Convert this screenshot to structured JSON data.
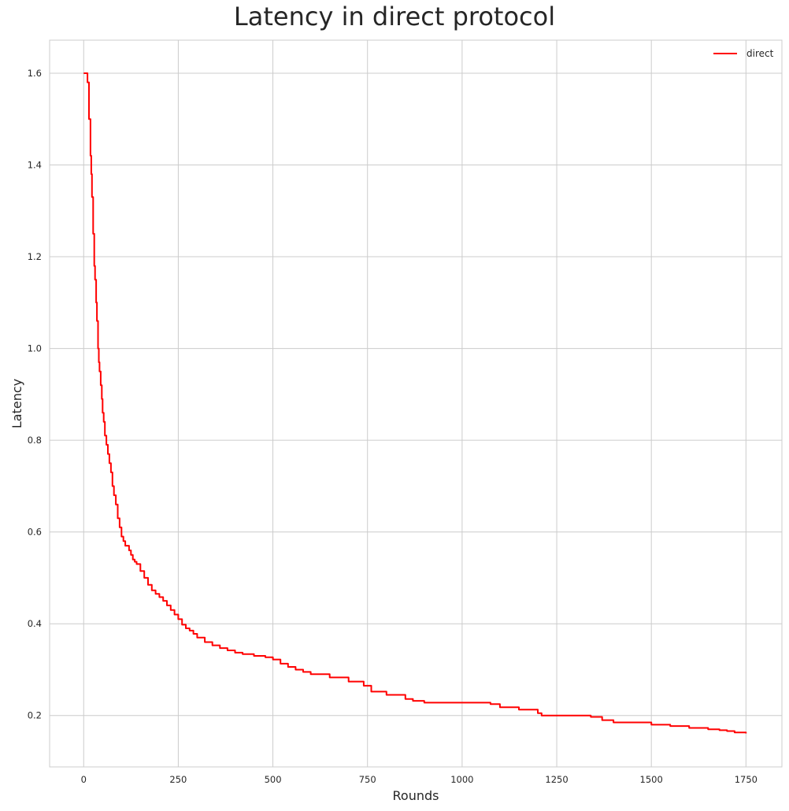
{
  "chart_data": {
    "type": "line",
    "title": "Latency in direct protocol",
    "xlabel": "Rounds",
    "ylabel": "Latency",
    "xlim": [
      -90,
      1845
    ],
    "ylim": [
      0.088,
      1.672
    ],
    "xticks": [
      0,
      250,
      500,
      750,
      1000,
      1250,
      1500,
      1750
    ],
    "xtick_labels": [
      "0",
      "250",
      "500",
      "750",
      "1000",
      "1250",
      "1500",
      "1750"
    ],
    "yticks": [
      0.2,
      0.4,
      0.6,
      0.8,
      1.0,
      1.2,
      1.4,
      1.6
    ],
    "ytick_labels": [
      "0.2",
      "0.4",
      "0.6",
      "0.8",
      "1.0",
      "1.2",
      "1.4",
      "1.6"
    ],
    "grid": true,
    "legend_position": "top-right",
    "series": [
      {
        "name": "direct",
        "color": "#ff0000",
        "x": [
          0,
          8,
          10,
          14,
          18,
          20,
          22,
          25,
          28,
          30,
          33,
          35,
          38,
          40,
          42,
          45,
          48,
          50,
          53,
          56,
          60,
          64,
          68,
          72,
          76,
          80,
          85,
          90,
          95,
          100,
          105,
          110,
          115,
          120,
          125,
          130,
          135,
          140,
          150,
          160,
          170,
          180,
          190,
          200,
          210,
          220,
          230,
          240,
          250,
          260,
          270,
          280,
          290,
          300,
          320,
          340,
          360,
          380,
          400,
          420,
          450,
          480,
          500,
          520,
          540,
          560,
          580,
          600,
          650,
          700,
          740,
          760,
          800,
          850,
          870,
          900,
          1000,
          1050,
          1075,
          1100,
          1150,
          1200,
          1210,
          1250,
          1300,
          1340,
          1370,
          1400,
          1450,
          1500,
          1550,
          1600,
          1650,
          1680,
          1700,
          1720,
          1750
        ],
        "y": [
          1.6,
          1.6,
          1.58,
          1.5,
          1.42,
          1.38,
          1.33,
          1.25,
          1.18,
          1.15,
          1.1,
          1.06,
          1.0,
          0.97,
          0.95,
          0.92,
          0.89,
          0.86,
          0.84,
          0.81,
          0.79,
          0.77,
          0.75,
          0.73,
          0.7,
          0.68,
          0.66,
          0.63,
          0.61,
          0.59,
          0.58,
          0.57,
          0.57,
          0.56,
          0.55,
          0.54,
          0.535,
          0.53,
          0.515,
          0.5,
          0.485,
          0.473,
          0.465,
          0.458,
          0.45,
          0.44,
          0.43,
          0.42,
          0.41,
          0.398,
          0.39,
          0.385,
          0.378,
          0.37,
          0.36,
          0.353,
          0.347,
          0.342,
          0.337,
          0.334,
          0.33,
          0.327,
          0.322,
          0.313,
          0.306,
          0.3,
          0.295,
          0.29,
          0.283,
          0.274,
          0.265,
          0.252,
          0.245,
          0.236,
          0.232,
          0.228,
          0.228,
          0.228,
          0.225,
          0.218,
          0.213,
          0.205,
          0.2,
          0.2,
          0.2,
          0.197,
          0.19,
          0.185,
          0.185,
          0.18,
          0.177,
          0.173,
          0.17,
          0.168,
          0.166,
          0.163,
          0.161
        ]
      }
    ]
  }
}
